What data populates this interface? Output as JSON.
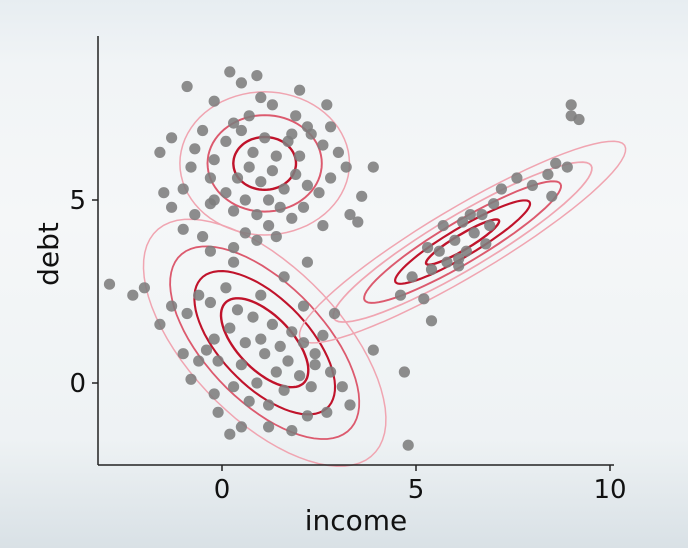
{
  "chart_data": {
    "type": "scatter",
    "title": "",
    "xlabel": "income",
    "ylabel": "debt",
    "xlim": [
      -3.3,
      10
    ],
    "ylim": [
      -2.2,
      9.5
    ],
    "xticks": [
      0,
      5,
      10
    ],
    "yticks": [
      0,
      5
    ],
    "grid": false,
    "colors": {
      "points": "#7d7d7d",
      "contour_dark": "#c0132b",
      "contour_mid": "#dc5a6e",
      "contour_light": "#f0a5b1"
    },
    "points": [
      [
        -2.9,
        2.7
      ],
      [
        -2.3,
        2.4
      ],
      [
        -2.0,
        2.6
      ],
      [
        -1.3,
        2.1
      ],
      [
        -1.6,
        1.6
      ],
      [
        -0.9,
        1.9
      ],
      [
        -0.6,
        2.4
      ],
      [
        -0.3,
        2.2
      ],
      [
        0.1,
        2.6
      ],
      [
        0.4,
        2.0
      ],
      [
        -0.2,
        1.2
      ],
      [
        0.2,
        1.5
      ],
      [
        0.6,
        1.1
      ],
      [
        -0.4,
        0.9
      ],
      [
        -0.1,
        0.6
      ],
      [
        0.5,
        0.5
      ],
      [
        0.8,
        1.8
      ],
      [
        1.0,
        1.2
      ],
      [
        1.3,
        1.6
      ],
      [
        1.1,
        0.8
      ],
      [
        1.5,
        1.0
      ],
      [
        1.8,
        1.4
      ],
      [
        2.1,
        1.1
      ],
      [
        1.7,
        0.6
      ],
      [
        2.4,
        0.8
      ],
      [
        2.6,
        1.3
      ],
      [
        2.0,
        0.2
      ],
      [
        1.4,
        0.3
      ],
      [
        0.9,
        0.0
      ],
      [
        0.3,
        -0.1
      ],
      [
        -0.6,
        0.6
      ],
      [
        -1.0,
        0.8
      ],
      [
        -0.8,
        0.1
      ],
      [
        -0.2,
        -0.3
      ],
      [
        0.7,
        -0.5
      ],
      [
        1.6,
        -0.2
      ],
      [
        2.3,
        -0.1
      ],
      [
        2.8,
        0.3
      ],
      [
        3.1,
        -0.1
      ],
      [
        3.3,
        -0.6
      ],
      [
        2.7,
        -0.8
      ],
      [
        2.2,
        -0.9
      ],
      [
        1.8,
        -1.3
      ],
      [
        1.2,
        -1.2
      ],
      [
        0.5,
        -1.2
      ],
      [
        -0.1,
        -0.8
      ],
      [
        0.2,
        -1.4
      ],
      [
        2.9,
        1.9
      ],
      [
        2.1,
        2.1
      ],
      [
        1.0,
        2.4
      ],
      [
        1.6,
        2.9
      ],
      [
        2.2,
        3.3
      ],
      [
        0.3,
        3.3
      ],
      [
        -0.3,
        3.6
      ],
      [
        2.4,
        0.5
      ],
      [
        1.2,
        -0.6
      ],
      [
        1.3,
        7.6
      ],
      [
        0.7,
        7.3
      ],
      [
        1.0,
        7.8
      ],
      [
        0.5,
        8.2
      ],
      [
        0.9,
        8.4
      ],
      [
        -0.9,
        8.1
      ],
      [
        -0.2,
        7.7
      ],
      [
        0.3,
        7.1
      ],
      [
        -0.5,
        6.9
      ],
      [
        -1.3,
        6.7
      ],
      [
        -1.6,
        6.3
      ],
      [
        -0.7,
        6.4
      ],
      [
        -0.2,
        6.1
      ],
      [
        0.1,
        6.6
      ],
      [
        0.5,
        6.9
      ],
      [
        0.8,
        6.3
      ],
      [
        1.1,
        6.7
      ],
      [
        1.4,
        6.2
      ],
      [
        1.7,
        6.6
      ],
      [
        2.0,
        6.2
      ],
      [
        2.3,
        6.8
      ],
      [
        2.6,
        6.5
      ],
      [
        2.2,
        7.0
      ],
      [
        1.9,
        7.3
      ],
      [
        0.4,
        5.6
      ],
      [
        0.7,
        5.9
      ],
      [
        1.0,
        5.5
      ],
      [
        1.3,
        5.8
      ],
      [
        1.6,
        5.3
      ],
      [
        1.9,
        5.7
      ],
      [
        2.2,
        5.4
      ],
      [
        0.1,
        5.2
      ],
      [
        -0.3,
        5.6
      ],
      [
        -0.8,
        5.9
      ],
      [
        -1.0,
        5.3
      ],
      [
        -1.3,
        4.8
      ],
      [
        -0.7,
        4.6
      ],
      [
        -0.3,
        4.9
      ],
      [
        0.3,
        4.7
      ],
      [
        0.6,
        5.0
      ],
      [
        0.9,
        4.6
      ],
      [
        1.2,
        5.0
      ],
      [
        1.5,
        4.8
      ],
      [
        1.8,
        4.5
      ],
      [
        2.1,
        4.8
      ],
      [
        2.5,
        5.2
      ],
      [
        2.8,
        5.6
      ],
      [
        3.2,
        5.9
      ],
      [
        3.6,
        5.1
      ],
      [
        3.9,
        5.9
      ],
      [
        3.0,
        6.3
      ],
      [
        2.8,
        7.0
      ],
      [
        2.7,
        7.6
      ],
      [
        2.0,
        8.0
      ],
      [
        0.2,
        8.5
      ],
      [
        1.8,
        6.8
      ],
      [
        0.6,
        4.1
      ],
      [
        1.2,
        4.3
      ],
      [
        -0.5,
        4.0
      ],
      [
        -1.0,
        4.2
      ],
      [
        2.6,
        4.3
      ],
      [
        0.9,
        3.9
      ],
      [
        -1.5,
        5.2
      ],
      [
        3.3,
        4.6
      ],
      [
        0.3,
        3.7
      ],
      [
        3.5,
        4.4
      ],
      [
        -0.2,
        5.0
      ],
      [
        1.4,
        4.0
      ],
      [
        4.6,
        2.4
      ],
      [
        4.9,
        2.9
      ],
      [
        5.2,
        2.3
      ],
      [
        5.4,
        3.1
      ],
      [
        5.6,
        3.6
      ],
      [
        5.8,
        3.3
      ],
      [
        6.0,
        3.9
      ],
      [
        6.2,
        4.4
      ],
      [
        6.3,
        3.6
      ],
      [
        6.5,
        4.1
      ],
      [
        6.7,
        4.6
      ],
      [
        6.9,
        4.3
      ],
      [
        7.0,
        4.9
      ],
      [
        7.2,
        5.3
      ],
      [
        7.6,
        5.6
      ],
      [
        8.0,
        5.4
      ],
      [
        8.4,
        5.7
      ],
      [
        8.5,
        5.1
      ],
      [
        8.9,
        5.9
      ],
      [
        5.3,
        3.7
      ],
      [
        5.7,
        4.3
      ],
      [
        6.1,
        3.2
      ],
      [
        6.8,
        3.8
      ],
      [
        4.7,
        0.3
      ],
      [
        3.9,
        0.9
      ],
      [
        4.8,
        -1.7
      ],
      [
        5.4,
        1.7
      ],
      [
        6.4,
        4.6
      ],
      [
        8.6,
        6.0
      ],
      [
        9.0,
        7.3
      ],
      [
        9.2,
        7.2
      ],
      [
        9.0,
        7.6
      ],
      [
        6.1,
        3.4
      ]
    ],
    "components": [
      {
        "mean": [
          1.1,
          1.1
        ],
        "sx": 1.25,
        "sy": 1.35,
        "rho": -0.62,
        "levels": [
          0.9,
          1.45,
          1.95,
          2.5
        ]
      },
      {
        "mean": [
          1.1,
          6.0
        ],
        "sx": 0.95,
        "sy": 0.85,
        "rho": 0.0,
        "levels": [
          0.85,
          1.55,
          2.3
        ]
      },
      {
        "mean": [
          6.2,
          3.85
        ],
        "sx": 1.45,
        "sy": 0.95,
        "rho": 0.92,
        "levels": [
          0.65,
          1.2,
          1.75,
          2.3,
          2.9
        ]
      }
    ]
  }
}
